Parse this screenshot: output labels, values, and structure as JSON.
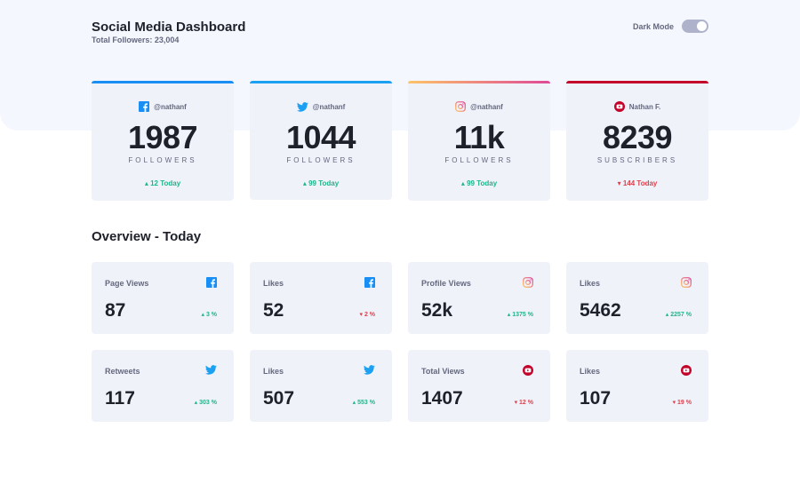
{
  "header": {
    "title": "Social Media Dashboard",
    "total_followers": "Total Followers: 23,004",
    "dark_mode_label": "Dark Mode",
    "dark_mode_on": false
  },
  "colors": {
    "facebook": "#198ff5",
    "twitter": "#1ca0f2",
    "instagram_start": "#fdc468",
    "instagram_end": "#df4996",
    "youtube": "#c4032a",
    "up": "#1eb589",
    "down": "#dc414c"
  },
  "cards": [
    {
      "platform": "facebook",
      "icon": "facebook-icon",
      "handle": "@nathanf",
      "count": "1987",
      "unit": "FOLLOWERS",
      "change": "12 Today",
      "direction": "up"
    },
    {
      "platform": "twitter",
      "icon": "twitter-icon",
      "handle": "@nathanf",
      "count": "1044",
      "unit": "FOLLOWERS",
      "change": "99 Today",
      "direction": "up"
    },
    {
      "platform": "instagram",
      "icon": "instagram-icon",
      "handle": "@nathanf",
      "count": "11k",
      "unit": "FOLLOWERS",
      "change": "99 Today",
      "direction": "up"
    },
    {
      "platform": "youtube",
      "icon": "youtube-icon",
      "handle": "Nathan F.",
      "count": "8239",
      "unit": "SUBSCRIBERS",
      "change": "144 Today",
      "direction": "down"
    }
  ],
  "overview": {
    "title": "Overview - Today",
    "items": [
      {
        "label": "Page Views",
        "platform": "facebook",
        "icon": "facebook-icon",
        "value": "87",
        "change": "3 %",
        "direction": "up"
      },
      {
        "label": "Likes",
        "platform": "facebook",
        "icon": "facebook-icon",
        "value": "52",
        "change": "2 %",
        "direction": "down"
      },
      {
        "label": "Profile Views",
        "platform": "instagram",
        "icon": "instagram-icon",
        "value": "52k",
        "change": "1375 %",
        "direction": "up"
      },
      {
        "label": "Likes",
        "platform": "instagram",
        "icon": "instagram-icon",
        "value": "5462",
        "change": "2257 %",
        "direction": "up"
      },
      {
        "label": "Retweets",
        "platform": "twitter",
        "icon": "twitter-icon",
        "value": "117",
        "change": "303 %",
        "direction": "up"
      },
      {
        "label": "Likes",
        "platform": "twitter",
        "icon": "twitter-icon",
        "value": "507",
        "change": "553 %",
        "direction": "up"
      },
      {
        "label": "Total Views",
        "platform": "youtube",
        "icon": "youtube-icon",
        "value": "1407",
        "change": "12 %",
        "direction": "down"
      },
      {
        "label": "Likes",
        "platform": "youtube",
        "icon": "youtube-icon",
        "value": "107",
        "change": "19 %",
        "direction": "down"
      }
    ]
  }
}
